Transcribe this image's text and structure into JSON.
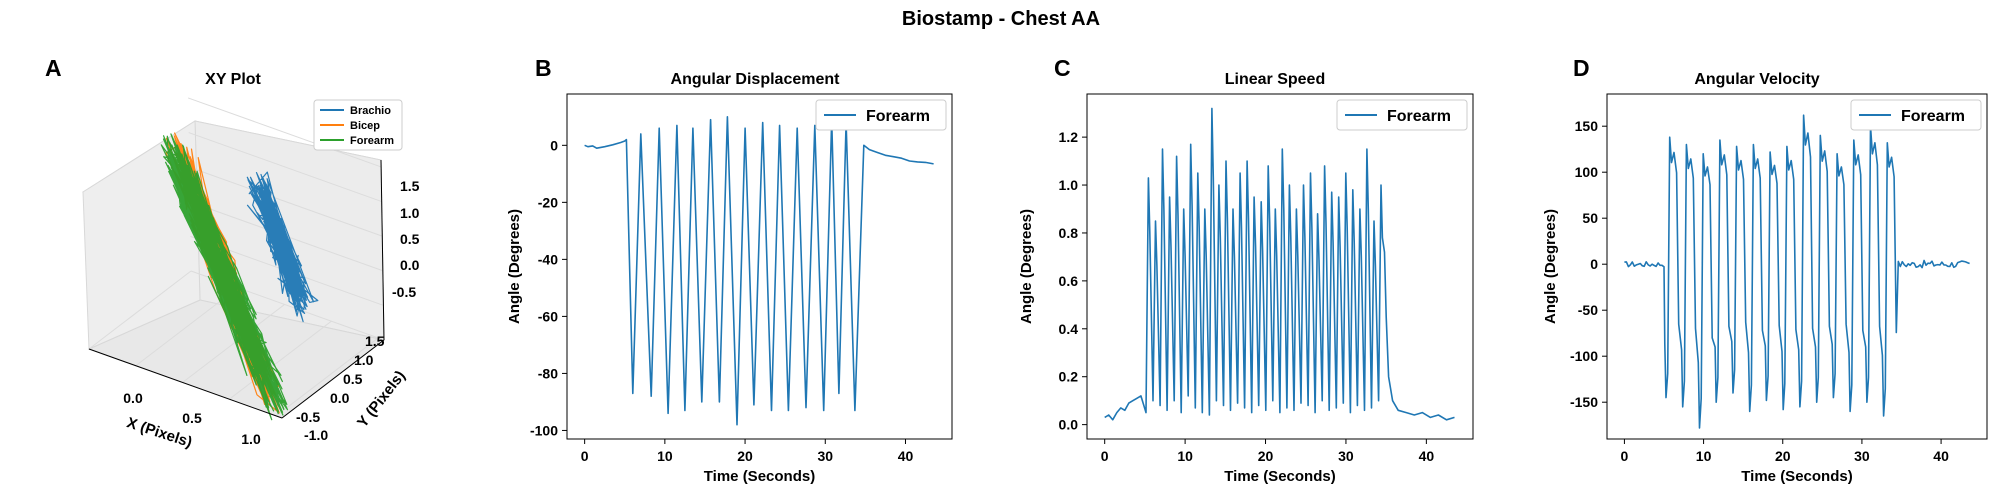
{
  "figure": {
    "title": "Biostamp - Chest AA"
  },
  "colors": {
    "series_blue": "#1f77b4",
    "series_orange": "#ff7f0e",
    "series_green": "#2ca02c"
  },
  "chart_data": [
    {
      "id": "A",
      "letter": "A",
      "type": "line3d",
      "title": "XY Plot",
      "xlabel": "X (Pixels)",
      "ylabel": "Y (Pixels)",
      "zlabel": "",
      "xlim": [
        -0.4,
        1.25
      ],
      "ylim": [
        -1.1,
        1.6
      ],
      "zlim": [
        -0.8,
        1.8
      ],
      "xticks": [
        "0.0",
        "0.5",
        "1.0"
      ],
      "yticks": [
        "-1.0",
        "-0.5",
        "0.0",
        "0.5",
        "1.0",
        "1.5"
      ],
      "zticks": [
        "-0.5",
        "0.0",
        "0.5",
        "1.0",
        "1.5"
      ],
      "legend": {
        "placement": "top-right",
        "entries": [
          "Brachio",
          "Bicep",
          "Forearm"
        ]
      },
      "series": [
        {
          "name": "Brachio",
          "color": "#1f77b4",
          "description_range": {
            "x": [
              0.35,
              1.0
            ],
            "y": [
              0.3,
              1.4
            ],
            "z": [
              0.0,
              1.2
            ]
          }
        },
        {
          "name": "Bicep",
          "color": "#ff7f0e",
          "description_range": {
            "x": [
              -0.2,
              1.1
            ],
            "y": [
              -0.9,
              1.3
            ],
            "z": [
              -0.7,
              1.6
            ]
          }
        },
        {
          "name": "Forearm",
          "color": "#2ca02c",
          "description_range": {
            "x": [
              -0.3,
              1.2
            ],
            "y": [
              -1.0,
              1.5
            ],
            "z": [
              -0.8,
              1.5
            ]
          }
        }
      ]
    },
    {
      "id": "B",
      "letter": "B",
      "type": "line",
      "title": "Angular Displacement",
      "xlabel": "Time (Seconds)",
      "ylabel": "Angle (Degrees)",
      "xlim": [
        -2.2,
        45.8
      ],
      "ylim": [
        -103,
        18
      ],
      "xticks": [
        0,
        10,
        20,
        30,
        40
      ],
      "yticks": [
        0,
        -20,
        -40,
        -60,
        -80,
        -100
      ],
      "legend": {
        "placement": "top-right",
        "entries": [
          "Forearm"
        ]
      },
      "series": [
        {
          "name": "Forearm",
          "color": "#1f77b4",
          "baseline_start": [
            [
              0,
              0
            ],
            [
              0.4,
              -0.5
            ],
            [
              1.0,
              -0.2
            ],
            [
              1.5,
              -1.0
            ],
            [
              2.5,
              -0.5
            ],
            [
              3.5,
              0.2
            ],
            [
              4.5,
              1.0
            ],
            [
              5.0,
              1.5
            ]
          ],
          "cycles": [
            {
              "peak_t": 5.2,
              "trough_t": 6.0,
              "trough": -87,
              "peak": 2
            },
            {
              "peak_t": 7.0,
              "trough_t": 8.3,
              "trough": -88,
              "peak": 4
            },
            {
              "peak_t": 9.3,
              "trough_t": 10.4,
              "trough": -94,
              "peak": 6
            },
            {
              "peak_t": 11.5,
              "trough_t": 12.5,
              "trough": -93,
              "peak": 7
            },
            {
              "peak_t": 13.5,
              "trough_t": 14.6,
              "trough": -90,
              "peak": 6
            },
            {
              "peak_t": 15.7,
              "trough_t": 16.8,
              "trough": -90,
              "peak": 9
            },
            {
              "peak_t": 17.8,
              "trough_t": 19.0,
              "trough": -98,
              "peak": 10
            },
            {
              "peak_t": 20.0,
              "trough_t": 21.1,
              "trough": -91,
              "peak": 6
            },
            {
              "peak_t": 22.2,
              "trough_t": 23.3,
              "trough": -93,
              "peak": 8
            },
            {
              "peak_t": 24.3,
              "trough_t": 25.4,
              "trough": -93,
              "peak": 7
            },
            {
              "peak_t": 26.5,
              "trough_t": 27.6,
              "trough": -92,
              "peak": 6
            },
            {
              "peak_t": 28.7,
              "trough_t": 29.8,
              "trough": -93,
              "peak": 7
            },
            {
              "peak_t": 30.8,
              "trough_t": 31.7,
              "trough": -87,
              "peak": 9
            },
            {
              "peak_t": 32.6,
              "trough_t": 33.7,
              "trough": -93,
              "peak": 8
            }
          ],
          "baseline_end": [
            [
              34.8,
              0
            ],
            [
              35.5,
              -1.5
            ],
            [
              36.5,
              -2.5
            ],
            [
              37.5,
              -3.5
            ],
            [
              38.5,
              -4
            ],
            [
              39.5,
              -4.5
            ],
            [
              40.5,
              -5.5
            ],
            [
              41.5,
              -5.8
            ],
            [
              42.5,
              -6
            ],
            [
              43.5,
              -6.5
            ]
          ]
        }
      ]
    },
    {
      "id": "C",
      "letter": "C",
      "type": "line",
      "title": "Linear Speed",
      "xlabel": "Time (Seconds)",
      "ylabel": "Angle (Degrees)",
      "xlim": [
        -2.2,
        45.8
      ],
      "ylim": [
        -0.06,
        1.38
      ],
      "xticks": [
        0,
        10,
        20,
        30,
        40
      ],
      "yticks": [
        0.0,
        0.2,
        0.4,
        0.6,
        0.8,
        1.0,
        1.2
      ],
      "legend": {
        "placement": "top-right",
        "entries": [
          "Forearm"
        ]
      },
      "series": [
        {
          "name": "Forearm",
          "color": "#1f77b4",
          "baseline_start": [
            [
              0,
              0.03
            ],
            [
              0.5,
              0.04
            ],
            [
              1.0,
              0.02
            ],
            [
              1.5,
              0.05
            ],
            [
              2.0,
              0.07
            ],
            [
              2.5,
              0.06
            ],
            [
              3.0,
              0.09
            ],
            [
              3.5,
              0.1
            ],
            [
              4.0,
              0.11
            ],
            [
              4.5,
              0.12
            ]
          ],
          "active_range": [
            5.0,
            34.8
          ],
          "active_peaks": [
            1.03,
            0.85,
            1.15,
            0.95,
            1.12,
            0.9,
            1.17,
            1.05,
            0.9,
            1.32,
            1.0,
            1.1,
            0.9,
            1.05,
            1.1,
            0.95,
            0.93,
            1.08,
            0.9,
            1.15,
            1.0,
            0.9,
            1.0,
            1.05,
            0.88,
            1.08,
            0.97,
            0.95,
            1.05,
            0.98,
            0.9,
            1.15,
            0.85,
            1.0
          ],
          "active_troughs": [
            0.05,
            0.1,
            0.08,
            0.06,
            0.1,
            0.05,
            0.12,
            0.07,
            0.05,
            0.04,
            0.1,
            0.08,
            0.06,
            0.09,
            0.07,
            0.05,
            0.08,
            0.06,
            0.1,
            0.05,
            0.07,
            0.06,
            0.09,
            0.08,
            0.05,
            0.1,
            0.06,
            0.07,
            0.09,
            0.05,
            0.08,
            0.06,
            0.07,
            0.1
          ],
          "baseline_end": [
            [
              34.8,
              0.72
            ],
            [
              35.0,
              0.45
            ],
            [
              35.3,
              0.2
            ],
            [
              35.8,
              0.1
            ],
            [
              36.5,
              0.06
            ],
            [
              37.5,
              0.05
            ],
            [
              38.5,
              0.04
            ],
            [
              39.5,
              0.05
            ],
            [
              40.5,
              0.03
            ],
            [
              41.5,
              0.04
            ],
            [
              42.5,
              0.02
            ],
            [
              43.5,
              0.03
            ]
          ]
        }
      ]
    },
    {
      "id": "D",
      "letter": "D",
      "type": "line",
      "title": "Angular Velocity",
      "xlabel": "Time (Seconds)",
      "ylabel": "Angle (Degrees)",
      "xlim": [
        -2.2,
        45.8
      ],
      "ylim": [
        -190,
        185
      ],
      "xticks": [
        0,
        10,
        20,
        30,
        40
      ],
      "yticks": [
        150,
        100,
        50,
        0,
        -50,
        -100,
        -150
      ],
      "legend": {
        "placement": "top-right",
        "entries": [
          "Forearm"
        ]
      },
      "series": [
        {
          "name": "Forearm",
          "color": "#1f77b4",
          "baseline_start_range": [
            0,
            5.0
          ],
          "active_range": [
            5.0,
            34.6
          ],
          "cycle_peaks": [
            138,
            130,
            120,
            135,
            128,
            130,
            122,
            128,
            162,
            140,
            120,
            135,
            150,
            132
          ],
          "cycle_troughs": [
            -145,
            -155,
            -178,
            -150,
            -140,
            -160,
            -148,
            -158,
            -155,
            -150,
            -145,
            -160,
            -150,
            -165
          ],
          "baseline_end_range": [
            34.6,
            43.6
          ]
        }
      ]
    }
  ]
}
